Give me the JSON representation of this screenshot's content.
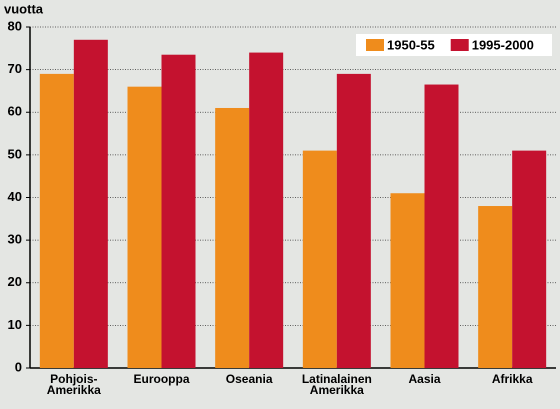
{
  "chart_data": {
    "type": "bar",
    "y_label": "vuotta",
    "categories": [
      "Pohjois-\nAmerikka",
      "Eurooppa",
      "Oseania",
      "Latinalainen\nAmerikka",
      "Aasia",
      "Afrikka"
    ],
    "series": [
      {
        "name": "1950-55",
        "color": "#ef8c1c",
        "values": [
          69,
          66,
          61,
          51,
          41,
          38
        ]
      },
      {
        "name": "1995-2000",
        "color": "#c4122f",
        "values": [
          77,
          73.5,
          74,
          69,
          66.5,
          51
        ]
      }
    ],
    "ylim": [
      0,
      80
    ],
    "yticks": [
      0,
      10,
      20,
      30,
      40,
      50,
      60,
      70,
      80
    ],
    "grid": true,
    "legend": "top-right"
  }
}
